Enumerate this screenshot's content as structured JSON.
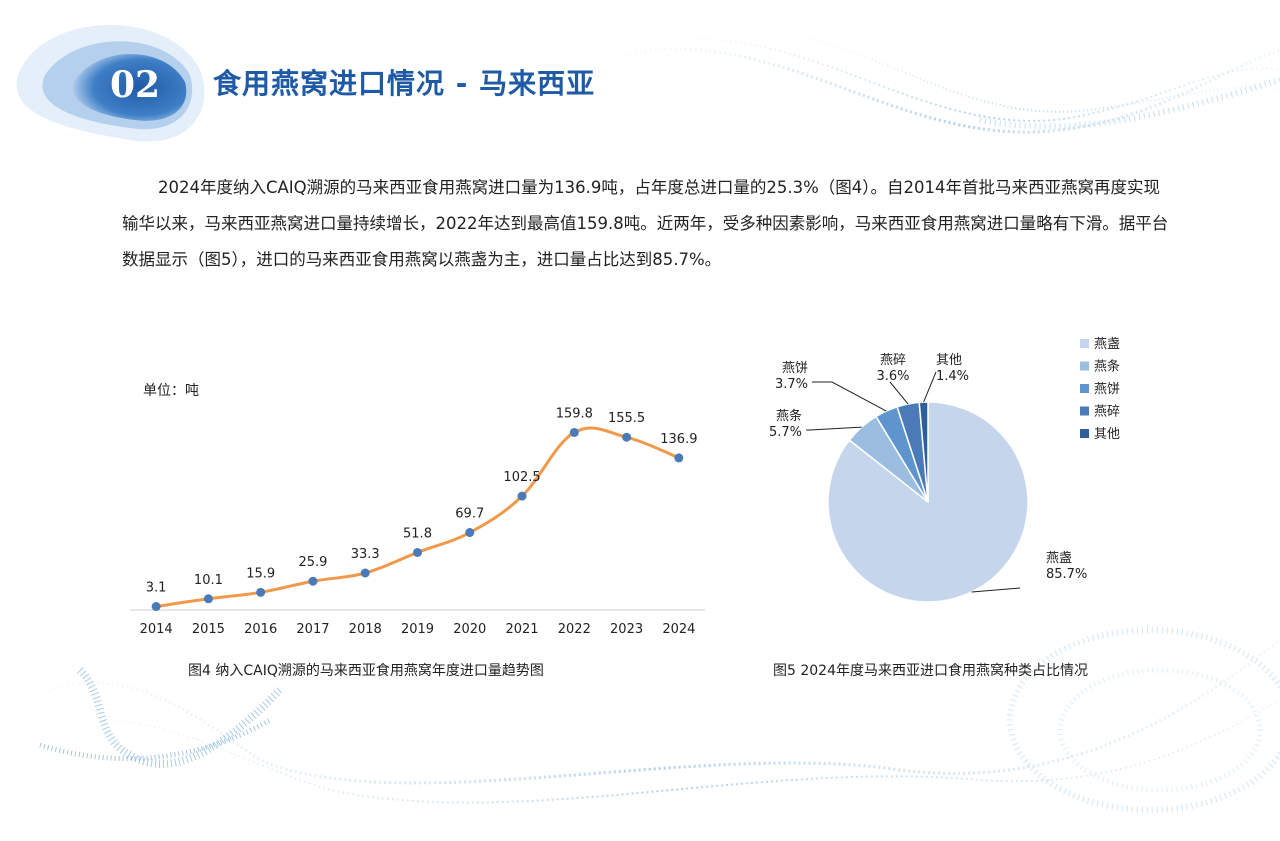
{
  "header": {
    "section_number": "02",
    "title": "食用燕窝进口情况 - 马来西亚"
  },
  "intro": {
    "text": "2024年度纳入CAIQ溯源的马来西亚食用燕窝进口量为136.9吨，占年度总进口量的25.3%（图4）。自2014年首批马来西亚燕窝再度实现输华以来，马来西亚燕窝进口量持续增长，2022年达到最高值159.8吨。近两年，受多种因素影响，马来西亚食用燕窝进口量略有下滑。据平台数据显示（图5），进口的马来西亚食用燕窝以燕盏为主，进口量占比达到85.7%。"
  },
  "colors": {
    "accent": "#1f5aa6",
    "line": "#f0994a",
    "marker": "#4a7ab8",
    "axis": "#d0d0d0"
  },
  "chart_data": [
    {
      "type": "line",
      "unit_label": "单位：吨",
      "categories": [
        "2014",
        "2015",
        "2016",
        "2017",
        "2018",
        "2019",
        "2020",
        "2021",
        "2022",
        "2023",
        "2024"
      ],
      "values": [
        3.1,
        10.1,
        15.9,
        25.9,
        33.3,
        51.8,
        69.7,
        102.5,
        159.8,
        155.5,
        136.9
      ],
      "labels": [
        "3.1",
        "10.1",
        "15.9",
        "25.9",
        "33.3",
        "51.8",
        "69.7",
        "102.5",
        "159.8",
        "155.5",
        "136.9"
      ],
      "ylim": [
        0,
        180
      ],
      "grid": false,
      "caption": "图4  纳入CAIQ溯源的马来西亚食用燕窝年度进口量趋势图"
    },
    {
      "type": "pie",
      "slices": [
        {
          "name": "燕盏",
          "value": 85.7,
          "label": "85.7%",
          "color": "#c5d6ec"
        },
        {
          "name": "燕条",
          "value": 5.7,
          "label": "5.7%",
          "color": "#9bbde0"
        },
        {
          "name": "燕饼",
          "value": 3.7,
          "label": "3.7%",
          "color": "#5e95cf"
        },
        {
          "name": "燕碎",
          "value": 3.6,
          "label": "3.6%",
          "color": "#4a7ab8"
        },
        {
          "name": "其他",
          "value": 1.4,
          "label": "1.4%",
          "color": "#2f5f9a"
        }
      ],
      "legend_position": "top-right",
      "caption": "图5  2024年度马来西亚进口食用燕窝种类占比情况"
    }
  ]
}
